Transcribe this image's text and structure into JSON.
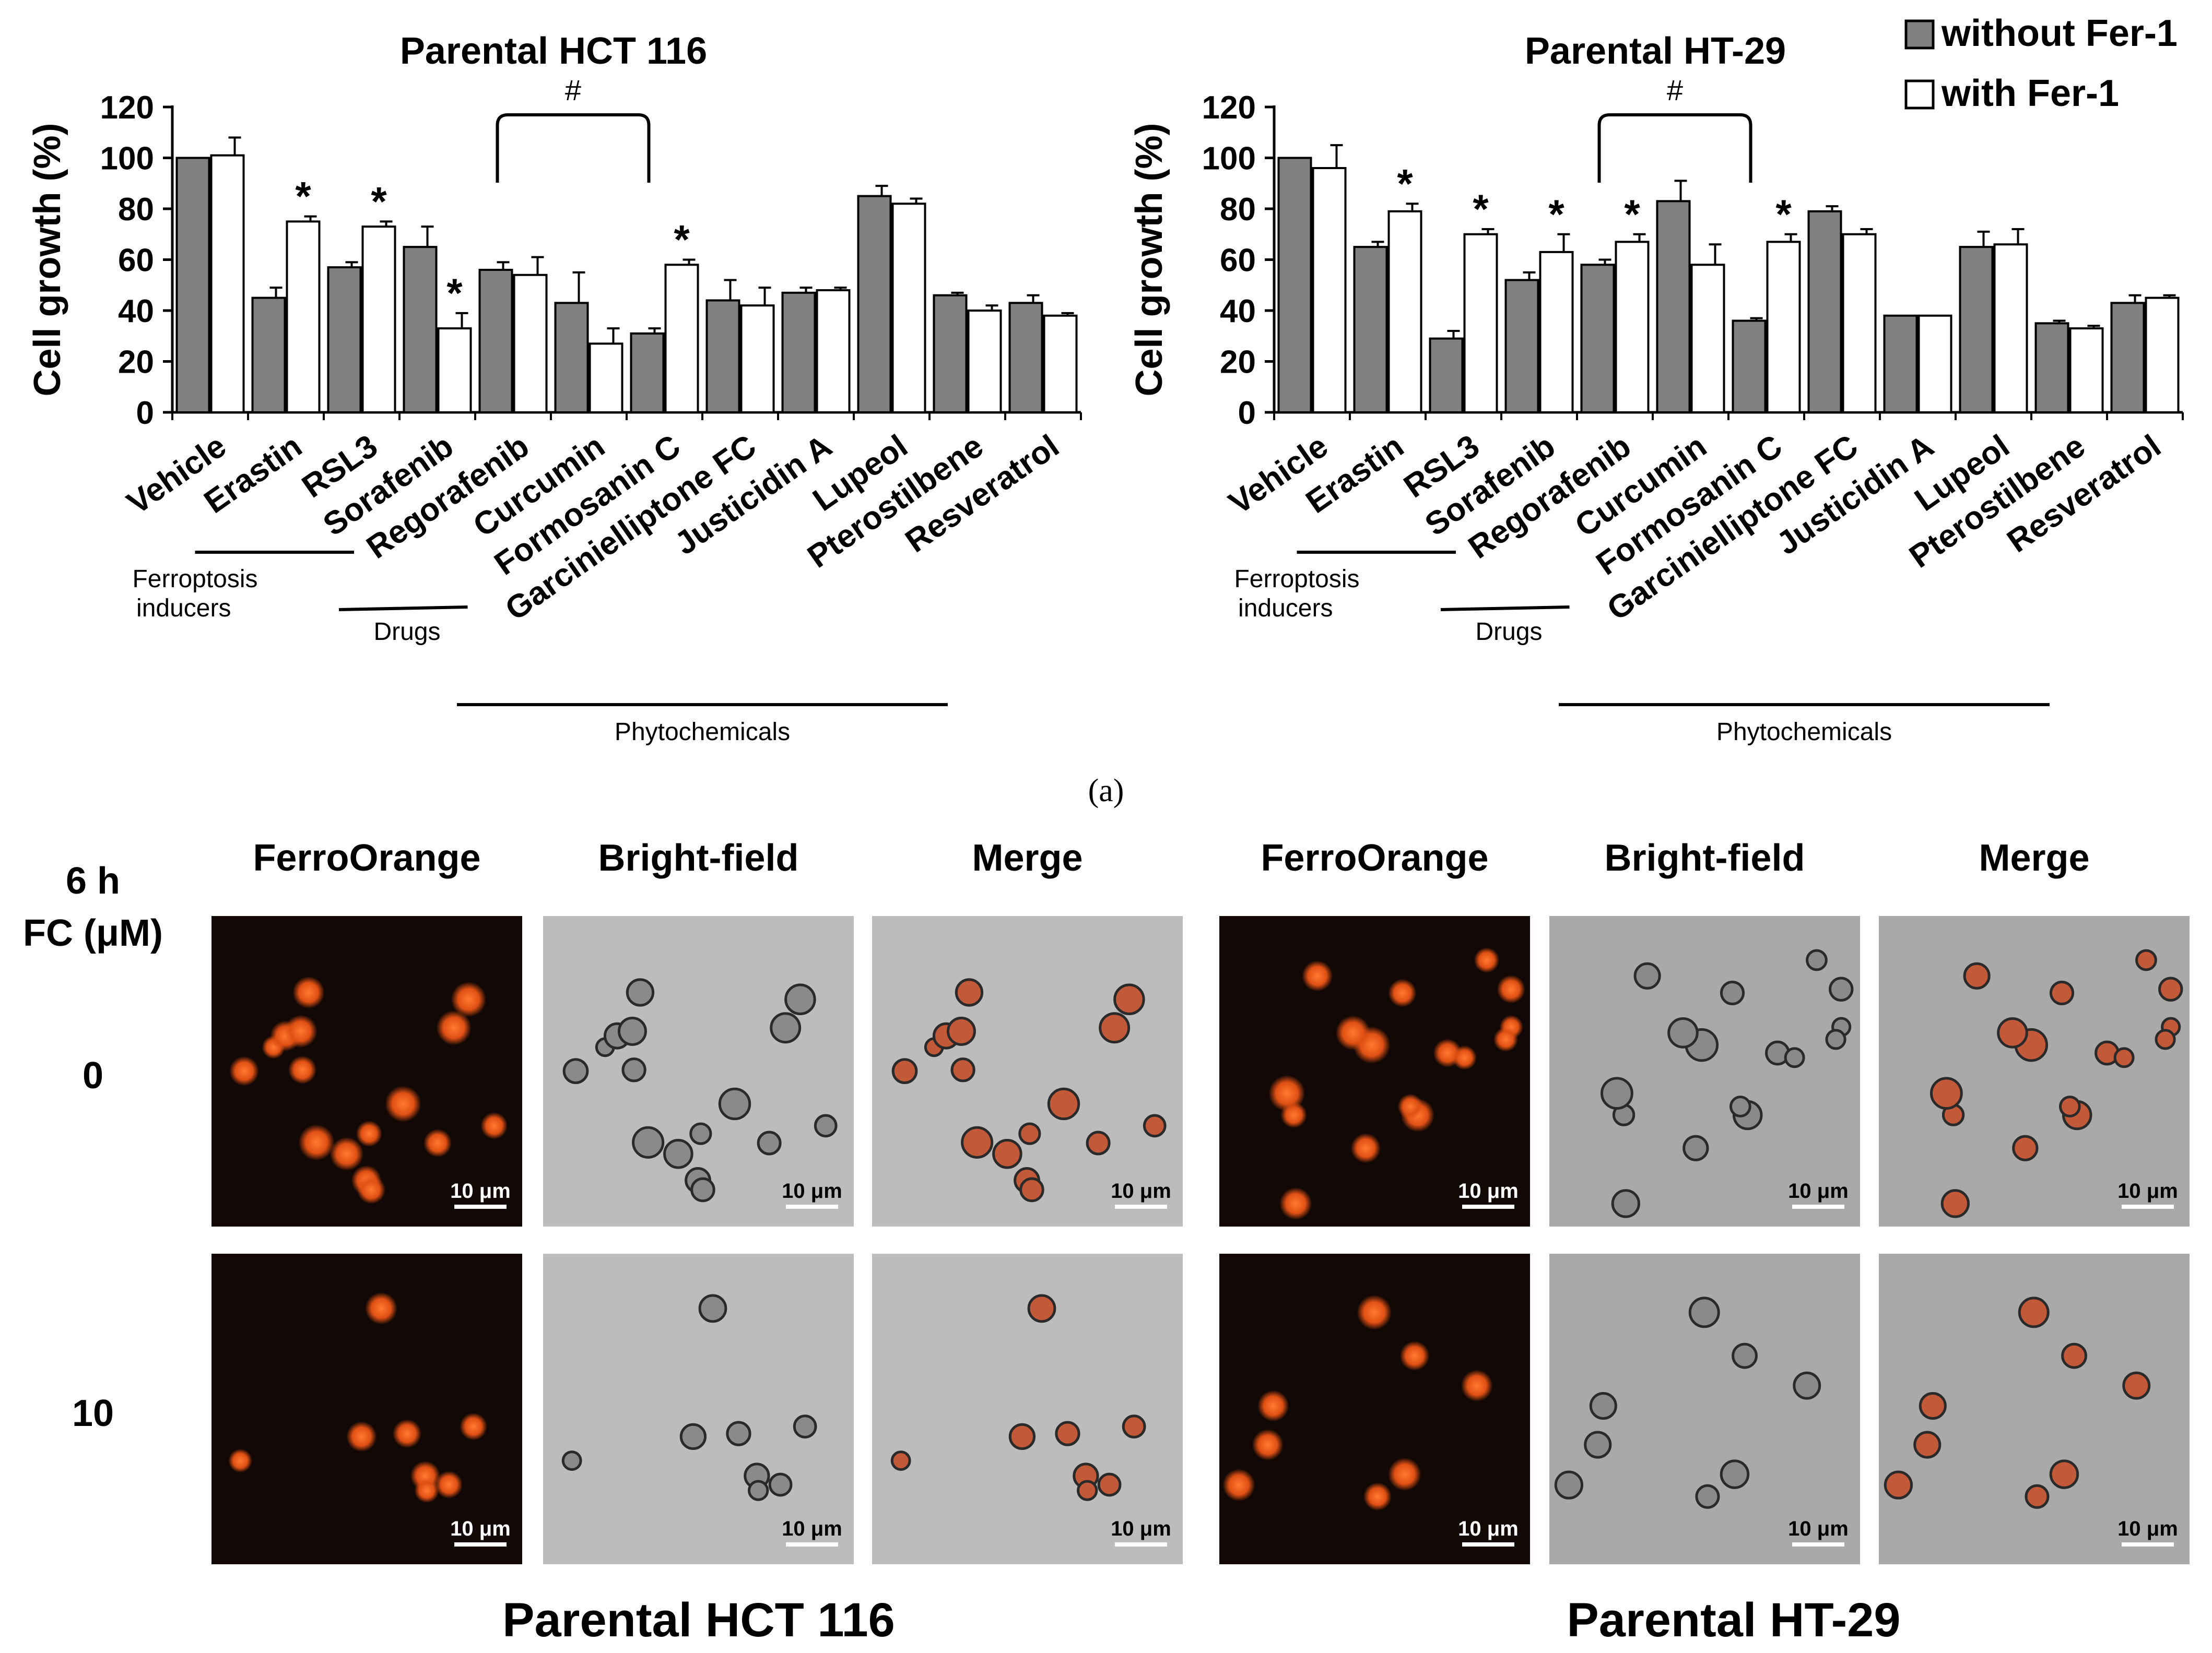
{
  "chart_data": [
    {
      "type": "bar",
      "title": "Parental HCT 116",
      "ylabel": "Cell growth (%)",
      "xlabel": "",
      "ylim": [
        0,
        120
      ],
      "yticks": [
        "0",
        "20",
        "40",
        "60",
        "80",
        "100",
        "120"
      ],
      "categories": [
        "Vehicle",
        "Erastin",
        "RSL3",
        "Sorafenib",
        "Regorafenib",
        "Curcumin",
        "Formosanin C",
        "Garcinielliptone FC",
        "Justicidin A",
        "Lupeol",
        "Pterostilbene",
        "Resveratrol"
      ],
      "series": [
        {
          "name": "without Fer-1",
          "color": "#808080",
          "values": [
            100,
            45,
            57,
            65,
            56,
            43,
            31,
            44,
            47,
            85,
            46,
            43
          ],
          "errors": [
            0,
            4,
            2,
            8,
            3,
            12,
            2,
            8,
            2,
            4,
            1,
            3
          ]
        },
        {
          "name": "with Fer-1",
          "color": "#ffffff",
          "values": [
            101,
            75,
            73,
            33,
            54,
            27,
            58,
            42,
            48,
            82,
            40,
            38
          ],
          "errors": [
            7,
            2,
            2,
            6,
            7,
            6,
            2,
            7,
            1,
            2,
            2,
            1
          ]
        }
      ],
      "significance": {
        "star_symbol": "*",
        "stars": [
          [
            1,
            1
          ],
          [
            2,
            1
          ],
          [
            3,
            1
          ],
          [
            6,
            1
          ]
        ],
        "hash_symbol": "#",
        "hash_bracket": [
          4,
          6
        ]
      },
      "groups": {
        "ferroptosis": "Ferroptosis inducers",
        "drugs": "Drugs",
        "phyto": "Phytochemicals"
      }
    },
    {
      "type": "bar",
      "title": "Parental HT-29",
      "ylabel": "Cell growth (%)",
      "xlabel": "",
      "ylim": [
        0,
        120
      ],
      "yticks": [
        "0",
        "20",
        "40",
        "60",
        "80",
        "100",
        "120"
      ],
      "categories": [
        "Vehicle",
        "Erastin",
        "RSL3",
        "Sorafenib",
        "Regorafenib",
        "Curcumin",
        "Formosanin C",
        "Garcinielliptone FC",
        "Justicidin A",
        "Lupeol",
        "Pterostilbene",
        "Resveratrol"
      ],
      "series": [
        {
          "name": "without Fer-1",
          "color": "#808080",
          "values": [
            100,
            65,
            29,
            52,
            58,
            83,
            36,
            79,
            38,
            65,
            35,
            43
          ],
          "errors": [
            0,
            2,
            3,
            3,
            2,
            8,
            1,
            2,
            0,
            6,
            1,
            3
          ]
        },
        {
          "name": "with Fer-1",
          "color": "#ffffff",
          "values": [
            96,
            79,
            70,
            63,
            67,
            58,
            67,
            70,
            38,
            66,
            33,
            45
          ],
          "errors": [
            9,
            3,
            2,
            7,
            3,
            8,
            3,
            2,
            0,
            6,
            1,
            1
          ]
        }
      ],
      "significance": {
        "star_symbol": "*",
        "stars": [
          [
            1,
            1
          ],
          [
            2,
            1
          ],
          [
            3,
            1
          ],
          [
            4,
            1
          ],
          [
            6,
            1
          ]
        ],
        "hash_symbol": "#",
        "hash_bracket": [
          4,
          6
        ]
      },
      "groups": {
        "ferroptosis": "Ferroptosis inducers",
        "drugs": "Drugs",
        "phyto": "Phytochemicals"
      }
    }
  ],
  "legend": {
    "without": "without Fer-1",
    "with": "with Fer-1"
  },
  "panel_label": "(a)",
  "microscopy": {
    "time_label": "6 h",
    "conc_label": "FC (μM)",
    "rows": [
      "0",
      "10"
    ],
    "columns": [
      "FerroOrange",
      "Bright-field",
      "Merge",
      "FerroOrange",
      "Bright-field",
      "Merge"
    ],
    "scale_bar": "10 μm",
    "cell_lines": [
      "Parental HCT 116",
      "Parental HT-29"
    ]
  }
}
